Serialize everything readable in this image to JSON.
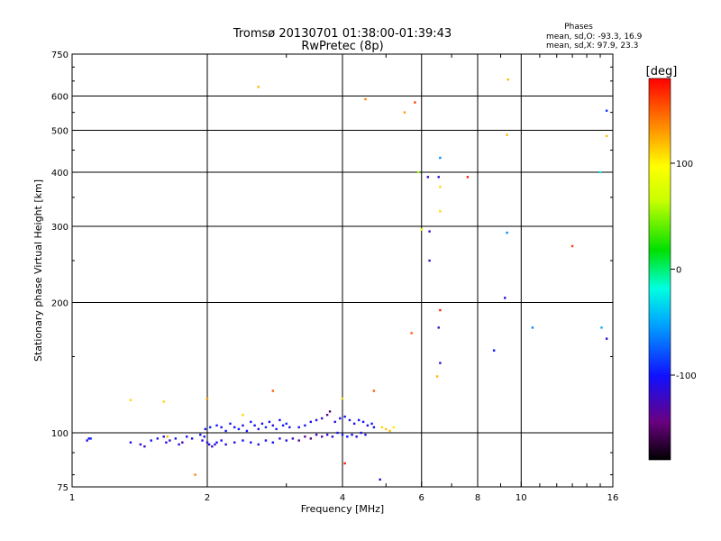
{
  "chart_data": {
    "type": "scatter",
    "title": "Tromsø 20130701 01:38:00-01:39:43",
    "subtitle": "RwPretec (8p)",
    "phases": {
      "heading": "Phases",
      "line1": "mean, sd,O: -93.3, 16.9",
      "line2": "mean, sd,X:  97.9, 23.3"
    },
    "xlabel": "Frequency [MHz]",
    "ylabel": "Stationary phase Virtual Height [km]",
    "xscale": "log",
    "yscale": "log",
    "xlim": [
      1,
      16
    ],
    "ylim": [
      75,
      750
    ],
    "xticks": [
      1,
      2,
      4,
      6,
      8,
      10,
      16
    ],
    "xtick_labels": [
      "1",
      "2",
      "4",
      "6",
      "8",
      "10",
      "16"
    ],
    "yticks": [
      75,
      100,
      200,
      300,
      400,
      500,
      600,
      750
    ],
    "ytick_labels": [
      "75",
      "100",
      "200",
      "300",
      "400",
      "500",
      "600",
      "750"
    ],
    "grid": true,
    "colorbar": {
      "label": "[deg]",
      "range": [
        -180,
        180
      ],
      "ticks": [
        100,
        0,
        -100
      ],
      "tick_labels": [
        "100",
        "0",
        "-100"
      ]
    },
    "points": [
      [
        1.09,
        97,
        -100
      ],
      [
        1.08,
        96,
        -110
      ],
      [
        1.35,
        95,
        -105
      ],
      [
        1.42,
        94,
        -115
      ],
      [
        1.45,
        93,
        -120
      ],
      [
        1.5,
        96,
        -100
      ],
      [
        1.55,
        97,
        -108
      ],
      [
        1.6,
        98,
        -112
      ],
      [
        1.62,
        95,
        -104
      ],
      [
        1.65,
        96,
        -118
      ],
      [
        1.7,
        97,
        -106
      ],
      [
        1.73,
        94,
        -111
      ],
      [
        1.76,
        95,
        -130
      ],
      [
        1.8,
        98,
        -102
      ],
      [
        1.85,
        97,
        -109
      ],
      [
        1.93,
        99,
        -100
      ],
      [
        1.95,
        96,
        -112
      ],
      [
        1.97,
        98,
        -105
      ],
      [
        2.0,
        95,
        -115
      ],
      [
        2.02,
        94,
        -108
      ],
      [
        2.05,
        93,
        -120
      ],
      [
        2.08,
        94,
        -110
      ],
      [
        2.1,
        95,
        -112
      ],
      [
        1.98,
        102,
        -100
      ],
      [
        2.03,
        103,
        -95
      ],
      [
        2.1,
        104,
        -98
      ],
      [
        2.15,
        103,
        -105
      ],
      [
        2.2,
        101,
        -100
      ],
      [
        2.25,
        105,
        -96
      ],
      [
        2.3,
        103,
        -104
      ],
      [
        2.35,
        102,
        -99
      ],
      [
        2.4,
        104,
        -110
      ],
      [
        2.45,
        101,
        -102
      ],
      [
        2.5,
        106,
        -97
      ],
      [
        2.55,
        104,
        -103
      ],
      [
        2.6,
        102,
        -108
      ],
      [
        2.65,
        105,
        -100
      ],
      [
        2.7,
        103,
        -94
      ],
      [
        2.75,
        106,
        -102
      ],
      [
        2.8,
        104,
        -111
      ],
      [
        2.85,
        102,
        -99
      ],
      [
        2.9,
        107,
        -105
      ],
      [
        2.95,
        104,
        -101
      ],
      [
        3.0,
        105,
        -97
      ],
      [
        3.05,
        103,
        -106
      ],
      [
        2.15,
        96,
        -104
      ],
      [
        2.2,
        94,
        -112
      ],
      [
        2.3,
        95,
        -108
      ],
      [
        2.4,
        96,
        -100
      ],
      [
        2.5,
        95,
        -106
      ],
      [
        2.6,
        94,
        -110
      ],
      [
        2.7,
        96,
        -104
      ],
      [
        2.8,
        95,
        -103
      ],
      [
        2.9,
        97,
        -109
      ],
      [
        3.0,
        96,
        -112
      ],
      [
        3.1,
        97,
        -120
      ],
      [
        3.2,
        96,
        -135
      ],
      [
        3.3,
        98,
        -140
      ],
      [
        3.4,
        97,
        -150
      ],
      [
        3.5,
        99,
        -128
      ],
      [
        3.6,
        98,
        -132
      ],
      [
        3.7,
        99,
        -118
      ],
      [
        3.8,
        98,
        -110
      ],
      [
        3.9,
        100,
        -104
      ],
      [
        4.0,
        99,
        -98
      ],
      [
        4.1,
        98,
        -100
      ],
      [
        4.2,
        99,
        -106
      ],
      [
        4.3,
        98,
        -112
      ],
      [
        4.4,
        100,
        -102
      ],
      [
        4.5,
        99,
        -108
      ],
      [
        3.2,
        103,
        -100
      ],
      [
        3.3,
        104,
        -104
      ],
      [
        3.4,
        106,
        -110
      ],
      [
        3.5,
        107,
        -106
      ],
      [
        3.6,
        108,
        -120
      ],
      [
        3.7,
        110,
        -140
      ],
      [
        3.75,
        112,
        -150
      ],
      [
        3.85,
        106,
        -115
      ],
      [
        3.95,
        108,
        -102
      ],
      [
        4.05,
        109,
        -100
      ],
      [
        4.15,
        107,
        -108
      ],
      [
        4.25,
        105,
        -110
      ],
      [
        4.35,
        107,
        -104
      ],
      [
        4.45,
        106,
        -100
      ],
      [
        4.55,
        104,
        -106
      ],
      [
        4.65,
        105,
        -98
      ],
      [
        4.7,
        103,
        -102
      ],
      [
        1.1,
        97,
        -96
      ],
      [
        1.35,
        119,
        110
      ],
      [
        1.6,
        118,
        112
      ],
      [
        1.63,
        98,
        120
      ],
      [
        1.88,
        80,
        140
      ],
      [
        2.0,
        120,
        130
      ],
      [
        2.4,
        110,
        110
      ],
      [
        2.6,
        630,
        120
      ],
      [
        2.8,
        125,
        150
      ],
      [
        4.05,
        85,
        170
      ],
      [
        4.0,
        120,
        110
      ],
      [
        4.5,
        590,
        140
      ],
      [
        4.7,
        125,
        150
      ],
      [
        4.9,
        103,
        112
      ],
      [
        5.0,
        102,
        118
      ],
      [
        5.1,
        101,
        120
      ],
      [
        5.2,
        103,
        105
      ],
      [
        4.85,
        78,
        -120
      ],
      [
        5.5,
        550,
        130
      ],
      [
        5.7,
        170,
        150
      ],
      [
        5.8,
        580,
        160
      ],
      [
        5.9,
        400,
        60
      ],
      [
        6.0,
        295,
        100
      ],
      [
        6.2,
        390,
        -120
      ],
      [
        6.25,
        292,
        -120
      ],
      [
        6.25,
        250,
        -120
      ],
      [
        6.5,
        135,
        120
      ],
      [
        6.55,
        390,
        -110
      ],
      [
        6.55,
        175,
        -120
      ],
      [
        6.6,
        432,
        -60
      ],
      [
        6.6,
        370,
        110
      ],
      [
        6.6,
        325,
        110
      ],
      [
        6.6,
        192,
        170
      ],
      [
        6.6,
        145,
        -120
      ],
      [
        7.6,
        390,
        170
      ],
      [
        8.7,
        155,
        -100
      ],
      [
        9.2,
        205,
        -110
      ],
      [
        9.3,
        290,
        -60
      ],
      [
        9.3,
        488,
        120
      ],
      [
        9.35,
        655,
        120
      ],
      [
        10.6,
        175,
        -60
      ],
      [
        13.0,
        270,
        160
      ],
      [
        15.0,
        400,
        -20
      ],
      [
        15.1,
        175,
        -50
      ],
      [
        15.5,
        165,
        -120
      ],
      [
        15.5,
        555,
        -90
      ],
      [
        15.5,
        485,
        120
      ]
    ]
  }
}
